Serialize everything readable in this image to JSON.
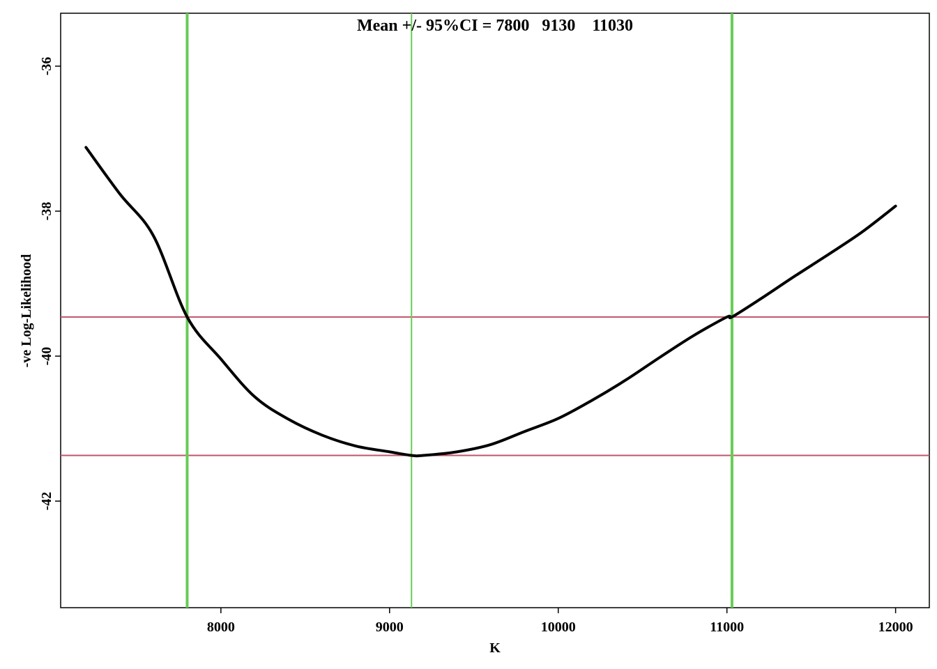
{
  "chart_data": {
    "type": "line",
    "title": "Mean +/- 95%CI = 7800   9130    11030",
    "xlabel": "K",
    "ylabel": "-ve Log-Likelihood",
    "xlim": [
      7050,
      12200
    ],
    "ylim": [
      -43.47,
      -35.27
    ],
    "x_ticks": [
      8000,
      9000,
      10000,
      11000,
      12000
    ],
    "x_tick_labels": [
      "8000",
      "9000",
      "10000",
      "11000",
      "12000"
    ],
    "y_ticks": [
      -36,
      -38,
      -40,
      -42
    ],
    "y_tick_labels": [
      "-36",
      "-38",
      "-40",
      "-42"
    ],
    "series": [
      {
        "color": "#000000",
        "x": [
          7200,
          7400,
          7600,
          7800,
          8000,
          8200,
          8400,
          8600,
          8800,
          9000,
          9130,
          9200,
          9400,
          9600,
          9800,
          10000,
          10200,
          10400,
          10600,
          10800,
          11000,
          11030,
          11200,
          11400,
          11600,
          11800,
          12000
        ],
        "y": [
          -37.12,
          -37.76,
          -38.34,
          -39.46,
          -40.04,
          -40.56,
          -40.87,
          -41.09,
          -41.24,
          -41.32,
          -41.37,
          -41.37,
          -41.32,
          -41.22,
          -41.04,
          -40.86,
          -40.61,
          -40.33,
          -40.02,
          -39.72,
          -39.46,
          -39.46,
          -39.21,
          -38.9,
          -38.6,
          -38.29,
          -37.93
        ]
      }
    ],
    "vlines": [
      {
        "x": 7800,
        "color": "#66cc55",
        "role": "lower CI"
      },
      {
        "x": 9130,
        "color": "#66cc55",
        "role": "mean"
      },
      {
        "x": 11030,
        "color": "#66cc55",
        "role": "upper CI"
      }
    ],
    "hlines": [
      {
        "y": -39.46,
        "color": "#c0546a"
      },
      {
        "y": -41.37,
        "color": "#c0546a"
      }
    ],
    "grid": false,
    "legend": "none"
  }
}
